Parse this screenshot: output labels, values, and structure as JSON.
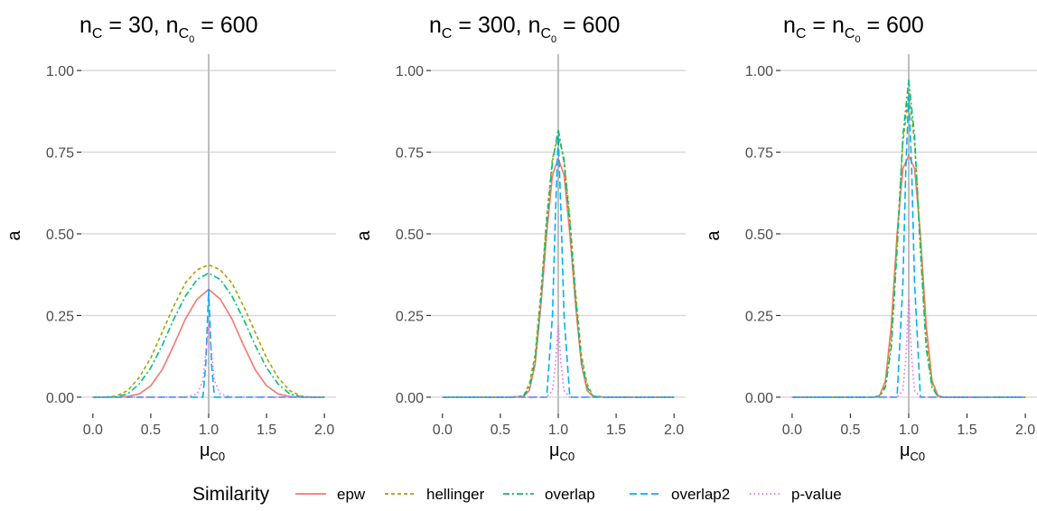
{
  "chart_data": {
    "type": "line",
    "legend": {
      "title": "Similarity",
      "position": "bottom",
      "entries": [
        {
          "name": "epw",
          "color": "#F8766D",
          "dash": "solid"
        },
        {
          "name": "hellinger",
          "color": "#A3A500",
          "dash": "dotted-short"
        },
        {
          "name": "overlap",
          "color": "#00BF7D",
          "dash": "dashdot"
        },
        {
          "name": "overlap2",
          "color": "#00B0F6",
          "dash": "dashed"
        },
        {
          "name": "p-value",
          "color": "#E76BF3",
          "dash": "dotted"
        }
      ]
    },
    "x_tick_labels": [
      "0.0",
      "0.5",
      "1.0",
      "1.5",
      "2.0"
    ],
    "y_tick_labels": [
      "0.00",
      "0.25",
      "0.50",
      "0.75",
      "1.00"
    ],
    "xlim": [
      -0.1,
      2.1
    ],
    "ylim": [
      -0.05,
      1.05
    ],
    "vline_x": 1.0,
    "grid": "major only",
    "xlabel": {
      "main": "μ",
      "sub": "C0"
    },
    "ylabel": "a",
    "panels": [
      {
        "title": {
          "p1": "n",
          "s1": "C",
          "p2": " = 30, n",
          "s2": "C",
          "s3": "0",
          "p3": " = 600"
        },
        "series": [
          {
            "name": "epw",
            "x": [
              0.0,
              0.1,
              0.2,
              0.3,
              0.4,
              0.5,
              0.6,
              0.7,
              0.8,
              0.9,
              1.0,
              1.1,
              1.2,
              1.3,
              1.4,
              1.5,
              1.6,
              1.7,
              1.8,
              1.9,
              2.0
            ],
            "y": [
              0.0,
              0.0,
              0.0,
              0.002,
              0.01,
              0.035,
              0.085,
              0.16,
              0.24,
              0.3,
              0.33,
              0.3,
              0.24,
              0.16,
              0.085,
              0.035,
              0.01,
              0.002,
              0.0,
              0.0,
              0.0
            ]
          },
          {
            "name": "hellinger",
            "x": [
              0.0,
              0.1,
              0.2,
              0.3,
              0.4,
              0.5,
              0.6,
              0.7,
              0.8,
              0.9,
              1.0,
              1.1,
              1.2,
              1.3,
              1.4,
              1.5,
              1.6,
              1.7,
              1.8,
              1.9,
              2.0
            ],
            "y": [
              0.0,
              0.0,
              0.003,
              0.02,
              0.06,
              0.12,
              0.2,
              0.28,
              0.35,
              0.39,
              0.405,
              0.39,
              0.35,
              0.28,
              0.2,
              0.12,
              0.06,
              0.02,
              0.003,
              0.0,
              0.0
            ]
          },
          {
            "name": "overlap",
            "x": [
              0.0,
              0.1,
              0.2,
              0.3,
              0.4,
              0.5,
              0.6,
              0.7,
              0.8,
              0.9,
              1.0,
              1.1,
              1.2,
              1.3,
              1.4,
              1.5,
              1.6,
              1.7,
              1.8,
              1.9,
              2.0
            ],
            "y": [
              0.0,
              0.0,
              0.001,
              0.01,
              0.04,
              0.09,
              0.16,
              0.24,
              0.31,
              0.36,
              0.38,
              0.36,
              0.31,
              0.24,
              0.16,
              0.09,
              0.04,
              0.01,
              0.001,
              0.0,
              0.0
            ]
          },
          {
            "name": "overlap2",
            "x": [
              0.0,
              0.9,
              0.95,
              0.975,
              1.0,
              1.025,
              1.05,
              1.1,
              2.0
            ],
            "y": [
              0.0,
              0.0,
              0.0,
              0.1,
              0.33,
              0.1,
              0.0,
              0.0,
              0.0
            ]
          },
          {
            "name": "p-value",
            "x": [
              0.0,
              0.8,
              0.9,
              0.95,
              1.0,
              1.05,
              1.1,
              1.2,
              2.0
            ],
            "y": [
              0.0,
              0.0,
              0.01,
              0.05,
              0.22,
              0.05,
              0.01,
              0.0,
              0.0
            ]
          }
        ]
      },
      {
        "title": {
          "p1": "n",
          "s1": "C",
          "p2": " = 300, n",
          "s2": "C",
          "s3": "0",
          "p3": " = 600"
        },
        "series": [
          {
            "name": "epw",
            "x": [
              0.0,
              0.6,
              0.7,
              0.75,
              0.8,
              0.85,
              0.9,
              0.95,
              1.0,
              1.05,
              1.1,
              1.15,
              1.2,
              1.25,
              1.3,
              1.4,
              2.0
            ],
            "y": [
              0.0,
              0.0,
              0.002,
              0.02,
              0.1,
              0.28,
              0.5,
              0.68,
              0.73,
              0.68,
              0.5,
              0.28,
              0.1,
              0.02,
              0.002,
              0.0,
              0.0
            ]
          },
          {
            "name": "hellinger",
            "x": [
              0.0,
              0.6,
              0.7,
              0.75,
              0.8,
              0.85,
              0.9,
              0.95,
              1.0,
              1.05,
              1.1,
              1.15,
              1.2,
              1.25,
              1.3,
              1.4,
              2.0
            ],
            "y": [
              0.0,
              0.0,
              0.004,
              0.04,
              0.13,
              0.32,
              0.55,
              0.73,
              0.8,
              0.73,
              0.55,
              0.32,
              0.13,
              0.04,
              0.004,
              0.0,
              0.0
            ]
          },
          {
            "name": "overlap",
            "x": [
              0.0,
              0.6,
              0.7,
              0.75,
              0.8,
              0.85,
              0.9,
              0.95,
              1.0,
              1.05,
              1.1,
              1.15,
              1.2,
              1.25,
              1.3,
              1.4,
              2.0
            ],
            "y": [
              0.0,
              0.0,
              0.003,
              0.03,
              0.11,
              0.3,
              0.53,
              0.72,
              0.82,
              0.72,
              0.53,
              0.3,
              0.11,
              0.03,
              0.003,
              0.0,
              0.0
            ]
          },
          {
            "name": "overlap2",
            "x": [
              0.0,
              0.85,
              0.9,
              0.95,
              0.975,
              1.0,
              1.025,
              1.05,
              1.1,
              1.15,
              2.0
            ],
            "y": [
              0.0,
              0.0,
              0.0,
              0.25,
              0.55,
              0.8,
              0.55,
              0.25,
              0.0,
              0.0,
              0.0
            ]
          },
          {
            "name": "p-value",
            "x": [
              0.0,
              0.9,
              0.95,
              0.975,
              1.0,
              1.025,
              1.05,
              1.1,
              2.0
            ],
            "y": [
              0.0,
              0.0,
              0.02,
              0.1,
              0.22,
              0.1,
              0.02,
              0.0,
              0.0
            ]
          }
        ]
      },
      {
        "title": {
          "p1": "n",
          "s1": "C",
          "p2": " = n",
          "s2": "C",
          "s3": "0",
          "p3": " = 600"
        },
        "series": [
          {
            "name": "epw",
            "x": [
              0.0,
              0.7,
              0.75,
              0.8,
              0.85,
              0.9,
              0.95,
              1.0,
              1.05,
              1.1,
              1.15,
              1.2,
              1.25,
              1.3,
              2.0
            ],
            "y": [
              0.0,
              0.0,
              0.005,
              0.05,
              0.22,
              0.5,
              0.7,
              0.74,
              0.7,
              0.5,
              0.22,
              0.05,
              0.005,
              0.0,
              0.0
            ]
          },
          {
            "name": "hellinger",
            "x": [
              0.0,
              0.7,
              0.75,
              0.8,
              0.85,
              0.9,
              0.95,
              1.0,
              1.05,
              1.1,
              1.15,
              1.2,
              1.25,
              1.3,
              2.0
            ],
            "y": [
              0.0,
              0.0,
              0.003,
              0.04,
              0.18,
              0.48,
              0.78,
              0.93,
              0.78,
              0.48,
              0.18,
              0.04,
              0.003,
              0.0,
              0.0
            ]
          },
          {
            "name": "overlap",
            "x": [
              0.0,
              0.7,
              0.75,
              0.8,
              0.85,
              0.9,
              0.95,
              1.0,
              1.05,
              1.1,
              1.15,
              1.2,
              1.25,
              1.3,
              2.0
            ],
            "y": [
              0.0,
              0.0,
              0.002,
              0.03,
              0.15,
              0.45,
              0.8,
              0.97,
              0.8,
              0.45,
              0.15,
              0.03,
              0.002,
              0.0,
              0.0
            ]
          },
          {
            "name": "overlap2",
            "x": [
              0.0,
              0.85,
              0.9,
              0.95,
              0.975,
              1.0,
              1.025,
              1.05,
              1.1,
              1.15,
              2.0
            ],
            "y": [
              0.0,
              0.0,
              0.0,
              0.35,
              0.7,
              0.92,
              0.7,
              0.35,
              0.0,
              0.0,
              0.0
            ]
          },
          {
            "name": "p-value",
            "x": [
              0.0,
              0.9,
              0.95,
              0.975,
              1.0,
              1.025,
              1.05,
              1.1,
              2.0
            ],
            "y": [
              0.0,
              0.0,
              0.02,
              0.12,
              0.3,
              0.12,
              0.02,
              0.0,
              0.0
            ]
          }
        ]
      }
    ]
  }
}
